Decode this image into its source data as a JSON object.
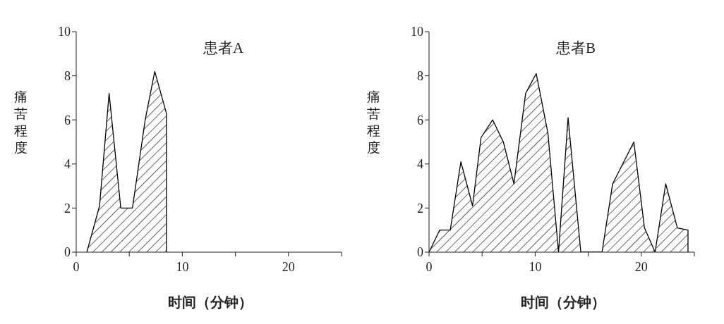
{
  "chart_data": [
    {
      "type": "area",
      "title": "患者A",
      "xlabel": "时间（分钟）",
      "ylabel": "痛苦程度",
      "xlim": [
        0,
        25
      ],
      "xticks": [
        0,
        {
          "value": 5,
          "label": null
        },
        10,
        {
          "value": 15,
          "label": null
        },
        20,
        {
          "value": 25,
          "label": null
        }
      ],
      "ylim": [
        0,
        10
      ],
      "yticks": [
        0,
        2,
        4,
        6,
        8,
        10
      ],
      "series": [
        {
          "color": "#000000",
          "x": [
            1,
            2.2,
            3.1,
            4.2,
            5.3,
            6.5,
            7.4,
            8.5,
            8.5
          ],
          "values": [
            0,
            2.1,
            7.2,
            2,
            2,
            6,
            8.2,
            6.3,
            0
          ]
        }
      ]
    },
    {
      "type": "area",
      "title": "患者B",
      "xlabel": "时间（分钟）",
      "ylabel": "痛苦程度",
      "xlim": [
        0,
        25
      ],
      "xticks": [
        0,
        {
          "value": 5,
          "label": null
        },
        10,
        {
          "value": 15,
          "label": null
        },
        20,
        {
          "value": 25,
          "label": null
        }
      ],
      "ylim": [
        0,
        10
      ],
      "yticks": [
        0,
        2,
        4,
        6,
        8,
        10
      ],
      "series": [
        {
          "color": "#000000",
          "x": [
            0,
            1,
            2,
            3,
            4.1,
            4.9,
            6,
            7,
            8,
            9.1,
            10.1,
            11.2,
            12.2,
            13.1,
            14.3,
            16.3,
            17.3,
            19.3,
            20.3,
            21.3,
            22.3,
            23.4,
            24.4,
            24.4
          ],
          "values": [
            0,
            1,
            1,
            4.1,
            2.1,
            5.2,
            6,
            5,
            3.1,
            7.2,
            8.1,
            5.4,
            0,
            6.1,
            0,
            0,
            3.1,
            5,
            1.1,
            0,
            3.1,
            1.1,
            1,
            0
          ]
        }
      ]
    }
  ]
}
